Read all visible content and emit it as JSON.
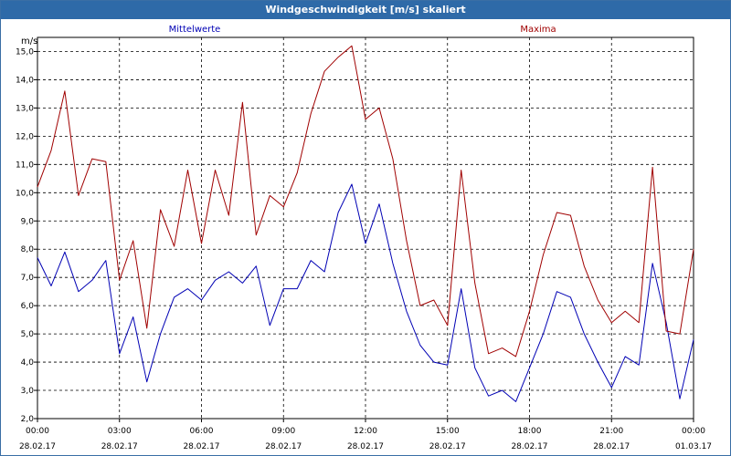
{
  "window": {
    "title": "Windgeschwindigkeit [m/s] skaliert"
  },
  "colors": {
    "mean": "#0000b4",
    "max": "#a00000",
    "grid": "#000000",
    "titlebar": "#2e6aa8"
  },
  "chart_data": {
    "type": "line",
    "title": "Windgeschwindigkeit [m/s] skaliert",
    "ylabel": "m/s",
    "xlabel": "",
    "ylim": [
      2.0,
      15.5
    ],
    "yticks": [
      "2,0",
      "3,0",
      "4,0",
      "5,0",
      "6,0",
      "7,0",
      "8,0",
      "9,0",
      "10,0",
      "11,0",
      "12,0",
      "13,0",
      "14,0",
      "15,0"
    ],
    "xlim": [
      "28.02.17 00:00",
      "01.03.17 00:00"
    ],
    "x_tick_labels": [
      {
        "time": "00:00",
        "date": "28.02.17"
      },
      {
        "time": "03:00",
        "date": "28.02.17"
      },
      {
        "time": "06:00",
        "date": "28.02.17"
      },
      {
        "time": "09:00",
        "date": "28.02.17"
      },
      {
        "time": "12:00",
        "date": "28.02.17"
      },
      {
        "time": "15:00",
        "date": "28.02.17"
      },
      {
        "time": "18:00",
        "date": "28.02.17"
      },
      {
        "time": "21:00",
        "date": "28.02.17"
      },
      {
        "time": "00:00",
        "date": "01.03.17"
      }
    ],
    "grid": true,
    "legend_position": "top",
    "x": [
      "00:00",
      "00:30",
      "01:00",
      "01:30",
      "02:00",
      "02:30",
      "03:00",
      "03:30",
      "04:00",
      "04:30",
      "05:00",
      "05:30",
      "06:00",
      "06:30",
      "07:00",
      "07:30",
      "08:00",
      "08:30",
      "09:00",
      "09:30",
      "10:00",
      "10:30",
      "11:00",
      "11:30",
      "12:00",
      "12:30",
      "13:00",
      "13:30",
      "14:00",
      "14:30",
      "15:00",
      "15:30",
      "16:00",
      "16:30",
      "17:00",
      "17:30",
      "18:00",
      "18:30",
      "19:00",
      "19:30",
      "20:00",
      "20:30",
      "21:00",
      "21:30",
      "22:00",
      "22:30",
      "23:00",
      "23:30",
      "24:00"
    ],
    "series": [
      {
        "name": "Mittelwerte",
        "color": "#0000b4",
        "values": [
          7.7,
          6.7,
          7.9,
          6.5,
          6.9,
          7.6,
          4.3,
          5.6,
          3.3,
          5.0,
          6.3,
          6.6,
          6.2,
          6.9,
          7.2,
          6.8,
          7.4,
          5.3,
          6.6,
          6.6,
          7.6,
          7.2,
          9.3,
          10.3,
          8.2,
          9.6,
          7.5,
          5.8,
          4.6,
          4.0,
          3.9,
          6.6,
          3.8,
          2.8,
          3.0,
          2.6,
          3.8,
          5.0,
          6.5,
          6.3,
          5.0,
          4.0,
          3.1,
          4.2,
          3.9,
          7.5,
          5.4,
          2.7,
          4.8
        ]
      },
      {
        "name": "Maxima",
        "color": "#a00000",
        "values": [
          10.2,
          11.5,
          13.6,
          9.9,
          11.2,
          11.1,
          6.9,
          8.3,
          5.2,
          9.4,
          8.1,
          10.8,
          8.2,
          10.8,
          9.2,
          13.2,
          8.5,
          9.9,
          9.5,
          10.7,
          12.8,
          14.3,
          14.8,
          15.2,
          12.6,
          13.0,
          11.2,
          8.3,
          6.0,
          6.2,
          5.3,
          10.8,
          6.8,
          4.3,
          4.5,
          4.2,
          5.8,
          7.8,
          9.3,
          9.2,
          7.4,
          6.2,
          5.4,
          5.8,
          5.4,
          10.9,
          5.1,
          5.0,
          8.0
        ]
      }
    ]
  }
}
